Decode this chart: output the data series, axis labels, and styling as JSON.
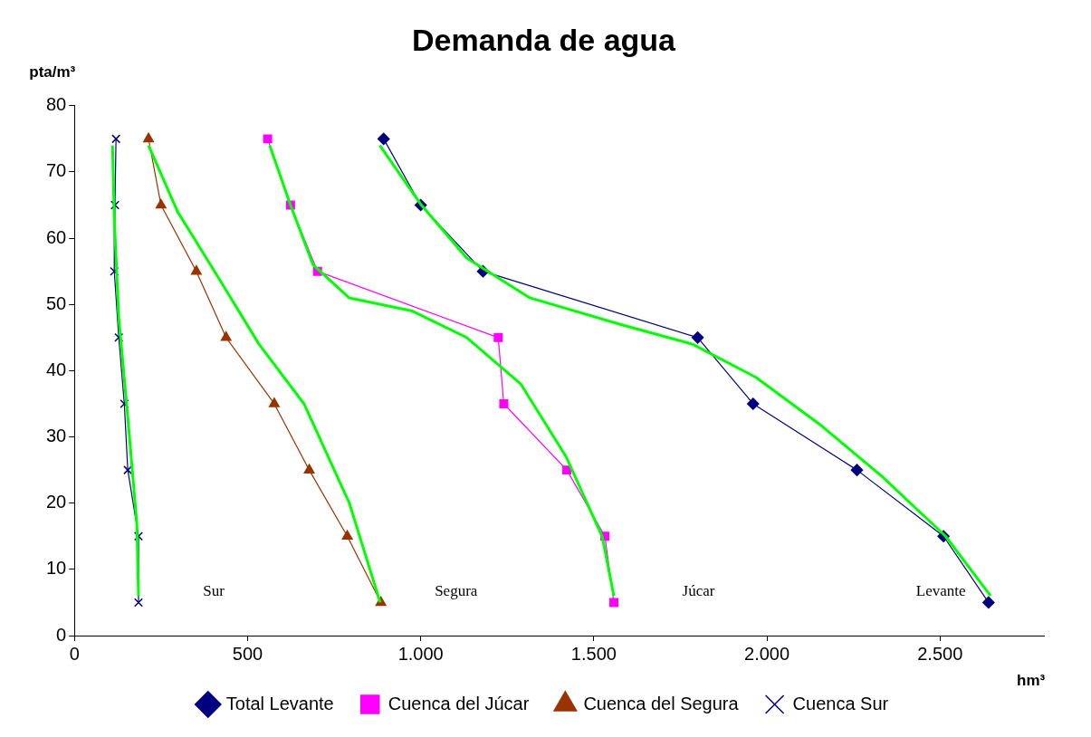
{
  "chart_data": {
    "type": "line",
    "title": "Demanda de agua",
    "xlabel": "hm³",
    "ylabel": "pta/m³",
    "xlim": [
      0,
      2800
    ],
    "xticks": [
      0,
      500,
      {
        "value": 1000,
        "label": "1.000"
      },
      {
        "value": 1500,
        "label": "1.500"
      },
      {
        "value": 2000,
        "label": "2.000"
      },
      {
        "value": 2500,
        "label": "2.500"
      }
    ],
    "ylim": [
      0,
      80
    ],
    "yticks": [
      0,
      10,
      20,
      30,
      40,
      50,
      60,
      70,
      80
    ],
    "grid": false,
    "legend": "bottom",
    "series": [
      {
        "name": "Total Levante",
        "color": "#000080",
        "marker": "diamond",
        "x": [
          893,
          1000,
          1180,
          1800,
          1960,
          2260,
          2510,
          2640
        ],
        "values": [
          75,
          65,
          55,
          45,
          35,
          25,
          15,
          5
        ]
      },
      {
        "name": "Cuenca del Júcar",
        "color": "#ff00ff",
        "marker": "square",
        "x": [
          558,
          624,
          702,
          1224,
          1240,
          1422,
          1532,
          1558
        ],
        "values": [
          75,
          65,
          55,
          45,
          35,
          25,
          15,
          5
        ]
      },
      {
        "name": "Cuenca del Segura",
        "color": "#993300",
        "marker": "triangle",
        "x": [
          214,
          250,
          352,
          438,
          577,
          678,
          788,
          885
        ],
        "values": [
          75,
          65,
          55,
          45,
          35,
          25,
          15,
          5
        ]
      },
      {
        "name": "Cuenca Sur",
        "color": "#000080",
        "marker": "cross",
        "x": [
          120,
          117,
          115,
          128,
          144,
          154,
          185,
          185
        ],
        "values": [
          75,
          65,
          55,
          45,
          35,
          25,
          15,
          5
        ]
      },
      {
        "type": "line",
        "color": "#00ff00",
        "marker": "none",
        "x": [
          882,
          1002,
          1133,
          1315,
          1576,
          1785,
          1968,
          2150,
          2333,
          2516,
          2646
        ],
        "values": [
          74,
          65,
          57,
          51,
          47,
          44,
          39,
          32,
          24,
          15,
          6
        ]
      },
      {
        "type": "line",
        "color": "#00ff00",
        "marker": "none",
        "x": [
          564,
          624,
          689,
          793,
          976,
          1133,
          1289,
          1420,
          1524,
          1558
        ],
        "values": [
          74,
          65,
          56,
          51,
          49,
          45,
          38,
          27,
          15,
          6
        ]
      },
      {
        "type": "line",
        "color": "#00ff00",
        "marker": "none",
        "x": [
          214,
          298,
          428,
          533,
          663,
          794,
          883
        ],
        "values": [
          74,
          64,
          53,
          44,
          35,
          20,
          5
        ]
      },
      {
        "type": "line",
        "color": "#00ff00",
        "marker": "none",
        "x": [
          110,
          115,
          128,
          154,
          180,
          185
        ],
        "values": [
          74,
          63,
          48,
          33,
          17,
          6
        ]
      }
    ],
    "annotations": [
      "Sur",
      "Segura",
      "Júcar",
      "Levante"
    ]
  }
}
